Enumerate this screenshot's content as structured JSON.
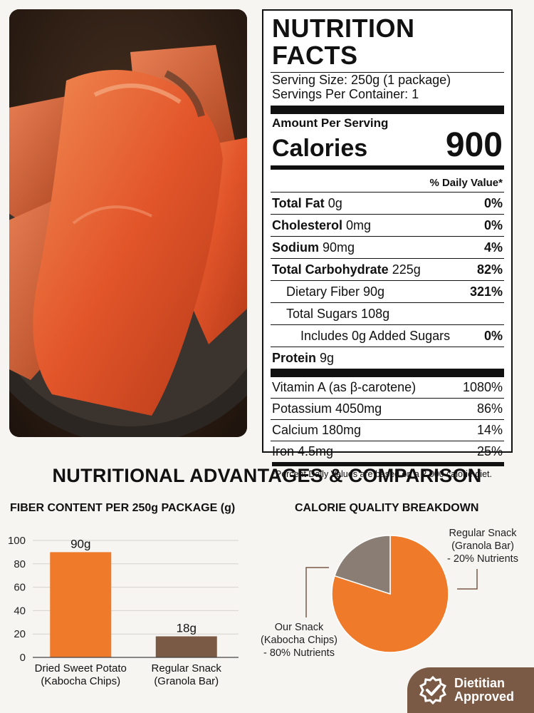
{
  "nutrition": {
    "title": "NUTRITION FACTS",
    "serving_size": "Serving Size: 250g (1 package)",
    "servings_per_container": "Servings Per Container: 1",
    "amount_per_serving": "Amount Per Serving",
    "calories_label": "Calories",
    "calories_value": "900",
    "dv_header": "% Daily Value*",
    "rows": [
      {
        "name": "Total Fat",
        "amount": "0g",
        "dv": "0%"
      },
      {
        "name": "Cholesterol",
        "amount": "0mg",
        "dv": "0%"
      },
      {
        "name": "Sodium",
        "amount": "90mg",
        "dv": "4%"
      },
      {
        "name": "Total Carbohydrate",
        "amount": "225g",
        "dv": "82%"
      },
      {
        "name": "Dietary Fiber 90g",
        "dv": "321%"
      },
      {
        "name": "Total Sugars 108g",
        "dv": ""
      },
      {
        "name": "Includes 0g Added Sugars",
        "dv": "0%"
      },
      {
        "name": "Protein",
        "amount": "9g",
        "dv": ""
      }
    ],
    "vitamins": [
      {
        "name": "Vitamin A (as β-carotene)",
        "dv": "1080%"
      },
      {
        "name": "Potassium 4050mg",
        "dv": "86%"
      },
      {
        "name": "Calcium 180mg",
        "dv": "14%"
      },
      {
        "name": "Iron 4.5mg",
        "dv": "25%"
      }
    ],
    "footnote": "*Percent Daily Values are based on a 2,000 calorie diet."
  },
  "section_title": "NUTRITIONAL ADVANTAGES & COMPARISON",
  "badge": {
    "line1": "Dietitian",
    "line2": "Approved",
    "icon": "check-badge-icon"
  },
  "chart_data": [
    {
      "type": "bar",
      "title": "FIBER CONTENT PER 250g PACKAGE (g)",
      "categories": [
        [
          "Dried Sweet Potato",
          "(Kabocha Chips)"
        ],
        [
          "Regular Snack",
          "(Granola Bar)"
        ]
      ],
      "values": [
        90,
        18
      ],
      "data_labels": [
        "90g",
        "18g"
      ],
      "colors": [
        "#ee7a2a",
        "#7a5a44"
      ],
      "yticks": [
        0,
        20,
        40,
        60,
        80,
        100
      ],
      "ylim": [
        0,
        100
      ],
      "grid": true
    },
    {
      "type": "pie",
      "title": "CALORIE QUALITY BREAKDOWN",
      "slices": [
        {
          "label": [
            "Our Snack",
            "(Kabocha Chips)",
            "- 80% Nutrients"
          ],
          "value": 80,
          "color": "#ee7a2a"
        },
        {
          "label": [
            "Regular Snack",
            "(Granola Bar)",
            "- 20% Nutrients"
          ],
          "value": 20,
          "color": "#8a7e74"
        }
      ]
    }
  ]
}
